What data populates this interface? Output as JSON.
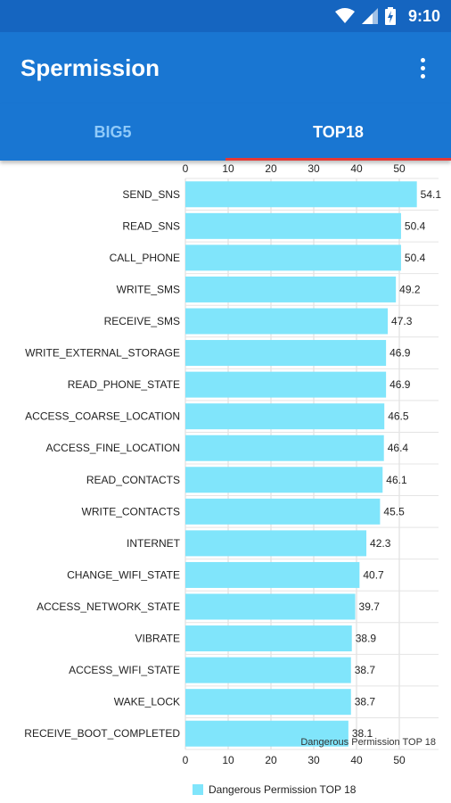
{
  "status_bar": {
    "time": "9:10",
    "icons": [
      "wifi-icon",
      "signal-icon",
      "battery-charging-icon"
    ],
    "color": "#1565c0"
  },
  "app_bar": {
    "title": "Spermission",
    "menu_icon": "more-vert-icon",
    "color": "#1976d2"
  },
  "tabs": [
    {
      "label": "BIG5",
      "active": false
    },
    {
      "label": "TOP18",
      "active": true
    }
  ],
  "chart_data": {
    "type": "bar",
    "orientation": "horizontal",
    "categories": [
      "SEND_SNS",
      "READ_SNS",
      "CALL_PHONE",
      "WRITE_SMS",
      "RECEIVE_SMS",
      "WRITE_EXTERNAL_STORAGE",
      "READ_PHONE_STATE",
      "ACCESS_COARSE_LOCATION",
      "ACCESS_FINE_LOCATION",
      "READ_CONTACTS",
      "WRITE_CONTACTS",
      "INTERNET",
      "CHANGE_WIFI_STATE",
      "ACCESS_NETWORK_STATE",
      "VIBRATE",
      "ACCESS_WIFI_STATE",
      "WAKE_LOCK",
      "RECEIVE_BOOT_COMPLETED"
    ],
    "series": [
      {
        "name": "Dangerous Permission TOP 18",
        "values": [
          54.1,
          50.4,
          50.4,
          49.2,
          47.3,
          46.9,
          46.9,
          46.5,
          46.4,
          46.1,
          45.5,
          42.3,
          40.7,
          39.7,
          38.9,
          38.7,
          38.7,
          38.1
        ],
        "value_labels": [
          "54.1",
          "50.4",
          "50.4",
          "49.2",
          "47.3",
          "46.9",
          "46.9",
          "46.5",
          "46.4",
          "46.1",
          "45.5",
          "42.3",
          "40.7",
          "39.7",
          "38.9",
          "38.7",
          "38.7",
          "38.1"
        ],
        "color": "#80e5fb"
      }
    ],
    "xlim": [
      0,
      60
    ],
    "xticks": [
      "0",
      "10",
      "20",
      "30",
      "40",
      "50"
    ],
    "x_axis_top": true,
    "x_axis_bottom": true,
    "grid": true,
    "description": "Dangerous Permission TOP 18",
    "legend": {
      "position": "bottom-center",
      "label": "Dangerous Permission TOP 18"
    }
  }
}
